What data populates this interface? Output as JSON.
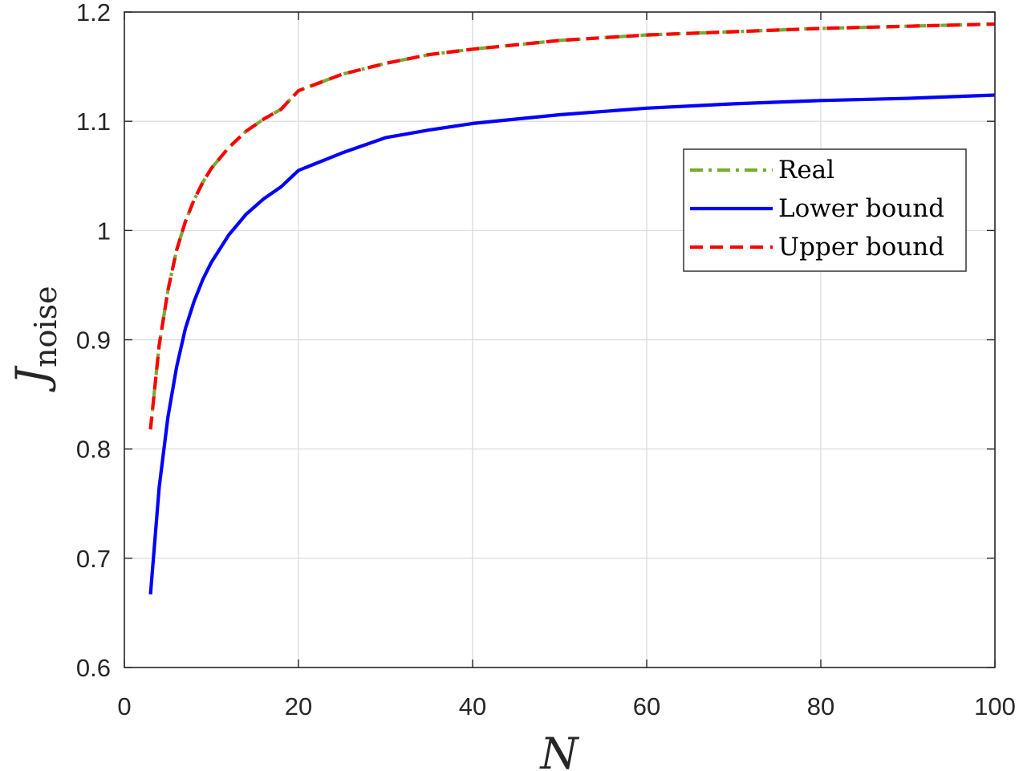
{
  "chart_data": {
    "type": "line",
    "title": "",
    "xlabel": "N",
    "ylabel": {
      "main": "J",
      "subscript": "noise"
    },
    "xlim": [
      0,
      100
    ],
    "ylim": [
      0.6,
      1.2
    ],
    "xticks": [
      0,
      20,
      40,
      60,
      80,
      100
    ],
    "yticks": [
      0.6,
      0.7,
      0.8,
      0.9,
      1.0,
      1.1,
      1.2
    ],
    "xtick_labels": [
      "0",
      "20",
      "40",
      "60",
      "80",
      "100"
    ],
    "ytick_labels": [
      "0.6",
      "0.7",
      "0.8",
      "0.9",
      "1",
      "1.1",
      "1.2"
    ],
    "grid": true,
    "legend_position": "right",
    "x": [
      3,
      4,
      5,
      6,
      7,
      8,
      9,
      10,
      12,
      14,
      16,
      18,
      20,
      25,
      30,
      35,
      40,
      50,
      60,
      70,
      80,
      90,
      100
    ],
    "series": [
      {
        "name": "Real",
        "color": "#77ac30",
        "style": "dash-dot",
        "values": [
          0.818,
          0.895,
          0.945,
          0.982,
          1.008,
          1.028,
          1.044,
          1.057,
          1.076,
          1.091,
          1.102,
          1.111,
          1.128,
          1.143,
          1.153,
          1.161,
          1.166,
          1.174,
          1.179,
          1.182,
          1.185,
          1.187,
          1.189
        ]
      },
      {
        "name": "Lower bound",
        "color": "#0000ff",
        "style": "solid",
        "values": [
          0.667,
          0.765,
          0.829,
          0.875,
          0.91,
          0.935,
          0.955,
          0.971,
          0.996,
          1.015,
          1.029,
          1.04,
          1.055,
          1.071,
          1.085,
          1.092,
          1.098,
          1.106,
          1.112,
          1.116,
          1.119,
          1.121,
          1.124
        ]
      },
      {
        "name": "Upper bound",
        "color": "#ff0000",
        "style": "dashed",
        "values": [
          0.818,
          0.895,
          0.945,
          0.982,
          1.008,
          1.028,
          1.044,
          1.057,
          1.076,
          1.091,
          1.102,
          1.111,
          1.128,
          1.143,
          1.153,
          1.161,
          1.166,
          1.174,
          1.179,
          1.182,
          1.185,
          1.187,
          1.189
        ]
      }
    ],
    "legend": [
      "Real",
      "Lower bound",
      "Upper bound"
    ]
  }
}
